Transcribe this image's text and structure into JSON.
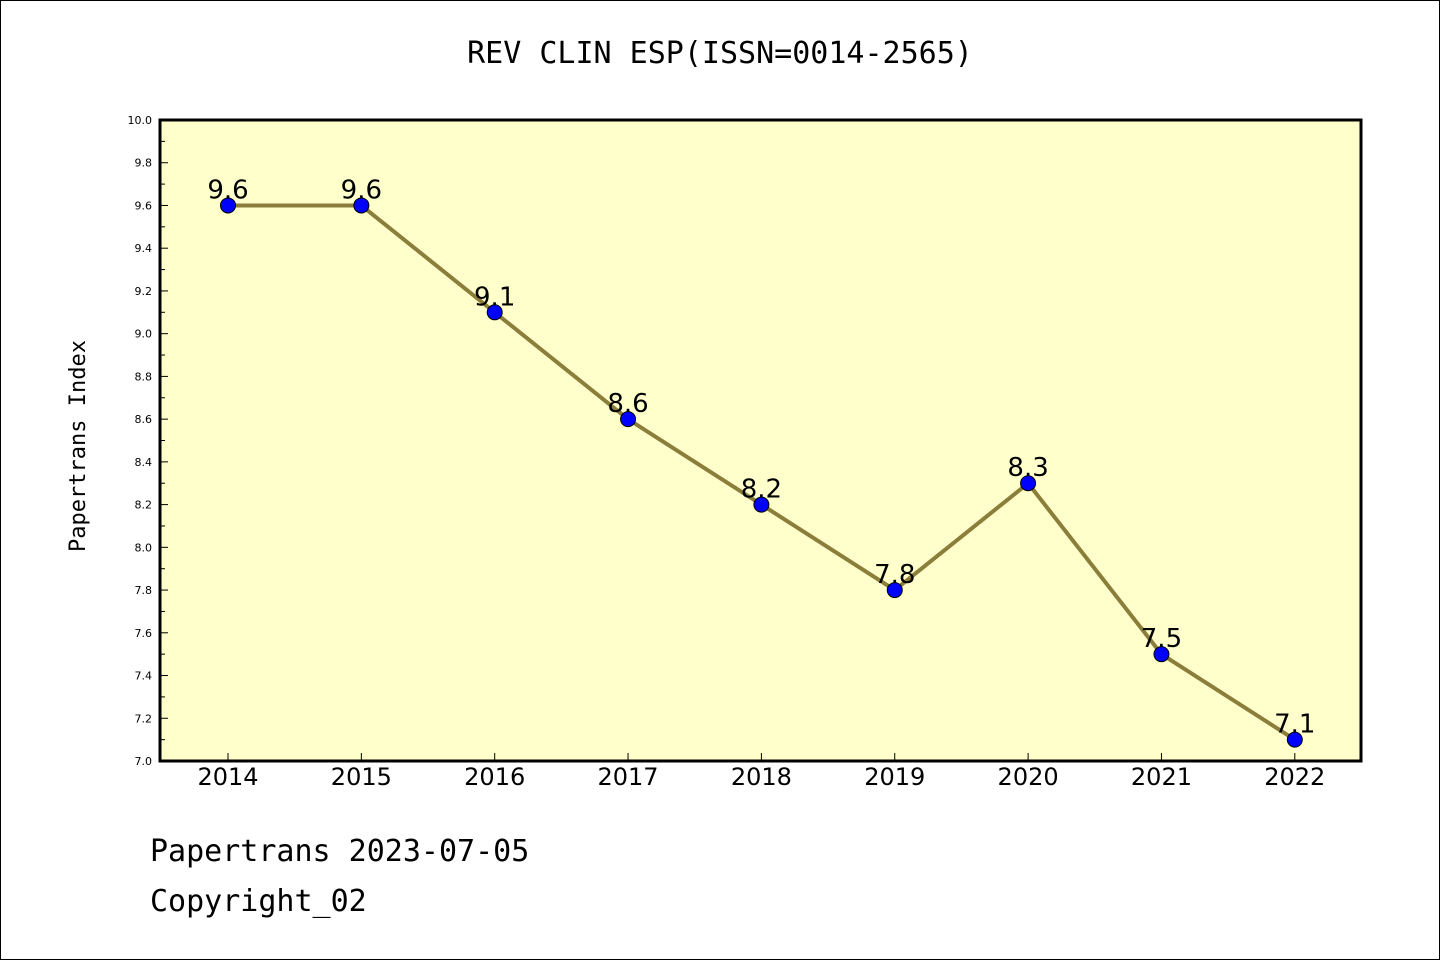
{
  "chart_data": {
    "type": "line",
    "title": "REV CLIN ESP(ISSN=0014-2565)",
    "xlabel": "",
    "ylabel": "Papertrans Index",
    "categories": [
      "2014",
      "2015",
      "2016",
      "2017",
      "2018",
      "2019",
      "2020",
      "2021",
      "2022"
    ],
    "series": [
      {
        "values": [
          9.6,
          9.6,
          9.1,
          8.6,
          8.2,
          7.8,
          8.3,
          7.5,
          7.1
        ]
      }
    ],
    "data_labels": [
      "9.6",
      "9.6",
      "9.1",
      "8.6",
      "8.2",
      "7.8",
      "8.3",
      "7.5",
      "7.1"
    ],
    "ylim": [
      7.0,
      10.0
    ],
    "yticks": [
      "7.0",
      "7.2",
      "7.4",
      "7.6",
      "7.8",
      "8.0",
      "8.2",
      "8.4",
      "8.6",
      "8.8",
      "9.0",
      "9.2",
      "9.4",
      "9.6",
      "9.8",
      "10.0"
    ],
    "grid": false,
    "legend": "none",
    "colors": {
      "plot_background": "#ffffcc",
      "line": "#8b7d3a",
      "marker": "#0000ff"
    }
  },
  "footer": {
    "line1": "Papertrans 2023-07-05",
    "line2": "Copyright_02"
  }
}
